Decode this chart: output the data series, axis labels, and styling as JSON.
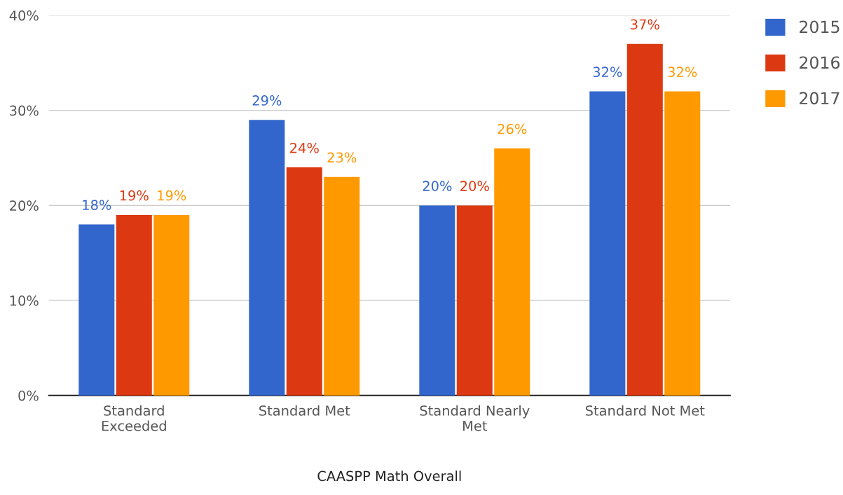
{
  "chart_data": {
    "type": "bar",
    "xlabel": "CAASPP Math Overall",
    "categories": [
      "Standard Exceeded",
      "Standard Met",
      "Standard Nearly Met",
      "Standard Not Met"
    ],
    "series": [
      {
        "name": "2015",
        "color": "#3366cc",
        "values": [
          18,
          29,
          20,
          32
        ],
        "value_labels": [
          "18%",
          "29%",
          "20%",
          "32%"
        ]
      },
      {
        "name": "2016",
        "color": "#dc3912",
        "values": [
          19,
          24,
          20,
          37
        ],
        "value_labels": [
          "19%",
          "24%",
          "20%",
          "37%"
        ]
      },
      {
        "name": "2017",
        "color": "#ff9900",
        "values": [
          19,
          23,
          26,
          32
        ],
        "value_labels": [
          "19%",
          "23%",
          "26%",
          "32%"
        ]
      }
    ],
    "ylim": [
      0,
      40
    ],
    "yticks": [
      {
        "value": 0,
        "label": "0%"
      },
      {
        "value": 10,
        "label": "10%"
      },
      {
        "value": 20,
        "label": "20%"
      },
      {
        "value": 30,
        "label": "30%"
      },
      {
        "value": 40,
        "label": "40%"
      }
    ],
    "grid": "y",
    "legend": "top right"
  }
}
